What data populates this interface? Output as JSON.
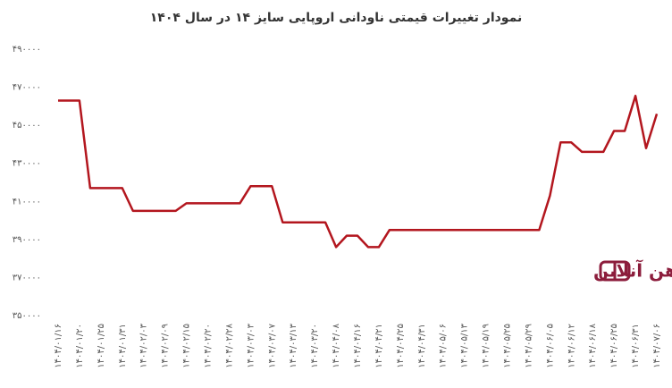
{
  "chart_data": {
    "type": "line",
    "title": "نمودار تغییرات قیمتی ناودانی اروپایی سایز ۱۴ در سال ۱۴۰۴",
    "watermark": "آهن آنلاین",
    "categories": [
      "۱۴۰۴/۰۱/۱۶",
      null,
      "۱۴۰۴/۰۱/۲۰",
      null,
      "۱۴۰۴/۰۱/۲۵",
      null,
      "۱۴۰۴/۰۱/۳۱",
      null,
      "۱۴۰۴/۰۲/۰۳",
      null,
      "۱۴۰۴/۰۲/۰۹",
      null,
      "۱۴۰۴/۰۲/۱۵",
      null,
      "۱۴۰۴/۰۲/۲۰",
      null,
      "۱۴۰۴/۰۲/۲۸",
      null,
      "۱۴۰۴/۰۳/۰۳",
      null,
      "۱۴۰۴/۰۳/۰۷",
      null,
      "۱۴۰۴/۰۳/۱۳",
      null,
      "۱۴۰۴/۰۳/۲۰",
      null,
      "۱۴۰۴/۰۴/۰۸",
      null,
      "۱۴۰۴/۰۴/۱۶",
      null,
      "۱۴۰۴/۰۴/۲۱",
      null,
      "۱۴۰۴/۰۴/۲۵",
      null,
      "۱۴۰۴/۰۴/۳۱",
      null,
      "۱۴۰۴/۰۵/۰۶",
      null,
      "۱۴۰۴/۰۵/۱۳",
      null,
      "۱۴۰۴/۰۵/۱۹",
      null,
      "۱۴۰۴/۰۵/۲۵",
      null,
      "۱۴۰۴/۰۵/۲۹",
      null,
      "۱۴۰۴/۰۶/۰۵",
      null,
      "۱۴۰۴/۰۶/۱۲",
      null,
      "۱۴۰۴/۰۶/۱۸",
      null,
      "۱۴۰۴/۰۶/۲۵",
      null,
      "۱۴۰۴/۰۶/۳۱",
      null,
      "۱۴۰۴/۰۷/۰۶"
    ],
    "values": [
      463000,
      463000,
      463000,
      417000,
      417000,
      417000,
      417000,
      405000,
      405000,
      405000,
      405000,
      405000,
      409000,
      409000,
      409000,
      409000,
      409000,
      409000,
      418000,
      418000,
      418000,
      399000,
      399000,
      399000,
      399000,
      399000,
      386000,
      392000,
      392000,
      386000,
      386000,
      395000,
      395000,
      395000,
      395000,
      395000,
      395000,
      395000,
      395000,
      395000,
      395000,
      395000,
      395000,
      395000,
      395000,
      395000,
      413000,
      441000,
      441000,
      436000,
      436000,
      436000,
      447000,
      447000,
      465500,
      438000,
      456000
    ],
    "color": "#b3161e",
    "ylim": [
      350000,
      490000
    ],
    "yticks": [
      {
        "value": 350000,
        "label": "۳۵۰۰۰۰"
      },
      {
        "value": 370000,
        "label": "۳۷۰۰۰۰"
      },
      {
        "value": 390000,
        "label": "۳۹۰۰۰۰"
      },
      {
        "value": 410000,
        "label": "۴۱۰۰۰۰"
      },
      {
        "value": 430000,
        "label": "۴۳۰۰۰۰"
      },
      {
        "value": 450000,
        "label": "۴۵۰۰۰۰"
      },
      {
        "value": 470000,
        "label": "۴۷۰۰۰۰"
      },
      {
        "value": 490000,
        "label": "۴۹۰۰۰۰"
      }
    ],
    "grid": false
  }
}
